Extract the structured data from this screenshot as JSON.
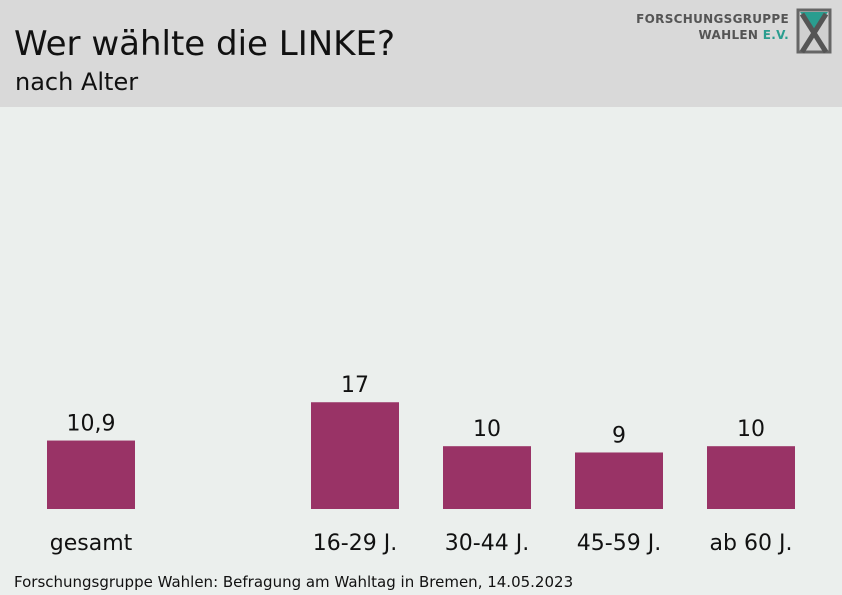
{
  "header": {
    "title": "Wer wählte die LINKE?",
    "subtitle": "nach Alter",
    "logo": {
      "line1": "FORSCHUNGSGRUPPE",
      "line2_main": "WAHLEN",
      "line2_suffix": "E.V."
    }
  },
  "chart_data": {
    "type": "bar",
    "title": "Wer wählte die LINKE?",
    "subtitle": "nach Alter",
    "categories": [
      "gesamt",
      "16-29 J.",
      "30-44 J.",
      "45-59 J.",
      "ab 60 J."
    ],
    "values": [
      10.9,
      17,
      10,
      9,
      10
    ],
    "value_labels": [
      "10,9",
      "17",
      "10",
      "9",
      "10"
    ],
    "bar_color": "#993366",
    "grid": false,
    "legend": "none"
  },
  "footer": {
    "source": "Forschungsgruppe Wahlen: Befragung am Wahltag in Bremen, 14.05.2023"
  }
}
